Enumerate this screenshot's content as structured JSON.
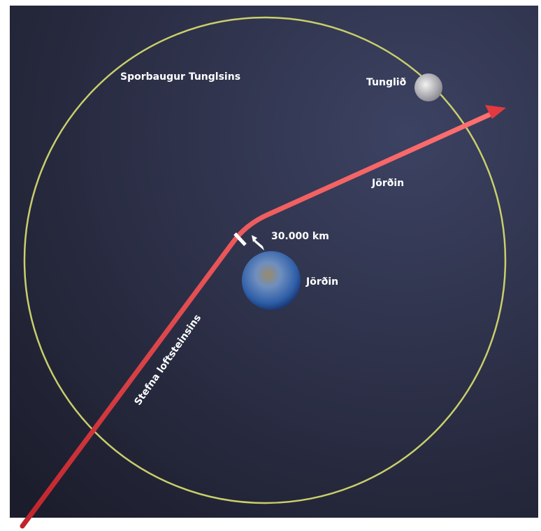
{
  "labels": {
    "orbit": "Sporbaugur Tunglsins",
    "moon": "Tunglið",
    "path_label": "Jörðin",
    "distance": "30.000 km",
    "earth": "Jörðin",
    "trajectory": "Stefna loftsteinsins"
  }
}
